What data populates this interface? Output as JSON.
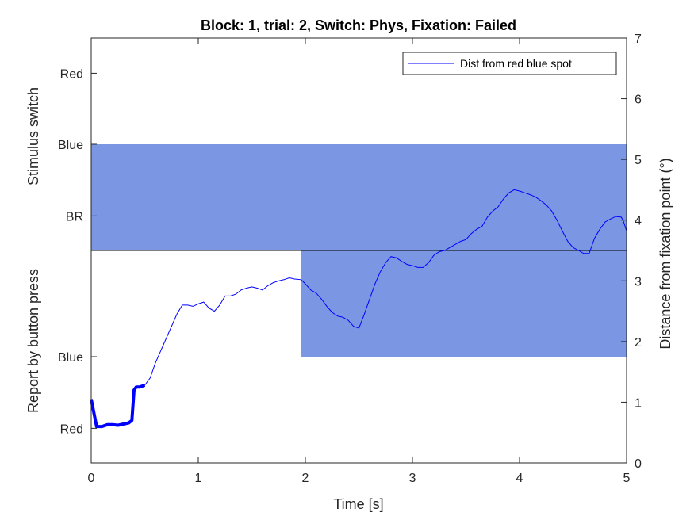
{
  "chart_data": {
    "type": "line",
    "title": "Block: 1, trial: 2, Switch: Phys, Fixation: Failed",
    "xlabel": "Time [s]",
    "ylabel_right": "Distance from fixation point (°)",
    "ylabel_left_top": "Stimulus switch",
    "ylabel_left_bottom": "Report by button press",
    "xlim": [
      0,
      5
    ],
    "ylim_right": [
      0,
      7
    ],
    "x_ticks": [
      "0",
      "1",
      "2",
      "3",
      "4",
      "5"
    ],
    "right_ticks": [
      "0",
      "1",
      "2",
      "3",
      "4",
      "5",
      "6",
      "7"
    ],
    "left_stimulus_ticks": [
      "BR",
      "Blue",
      "Red"
    ],
    "left_report_ticks": [
      "Red",
      "Blue"
    ],
    "divider_y": 3.5,
    "stimulus_bands": [
      {
        "x_start": 0,
        "x_end": 5,
        "state": "Blue",
        "y_top": 5.25,
        "y_bottom": 3.5
      }
    ],
    "report_bands": [
      {
        "x_start": 1.96,
        "x_end": 5,
        "state": "Blue",
        "y_top": 3.5,
        "y_bottom": 1.75
      }
    ],
    "band_color": "#7B97E3",
    "line_color": "#0000FF",
    "legend": {
      "entries": [
        "Dist from red blue spot"
      ],
      "location": "top-right"
    },
    "series": [
      {
        "name": "Dist from red blue spot",
        "x": [
          0.0,
          0.05,
          0.1,
          0.15,
          0.2,
          0.25,
          0.3,
          0.35,
          0.38,
          0.4,
          0.42,
          0.45,
          0.5,
          0.55,
          0.6,
          0.65,
          0.7,
          0.75,
          0.8,
          0.85,
          0.9,
          0.95,
          1.0,
          1.05,
          1.1,
          1.15,
          1.2,
          1.25,
          1.3,
          1.35,
          1.4,
          1.45,
          1.5,
          1.55,
          1.6,
          1.65,
          1.7,
          1.75,
          1.8,
          1.85,
          1.9,
          1.96,
          2.0,
          2.05,
          2.1,
          2.15,
          2.2,
          2.25,
          2.3,
          2.35,
          2.4,
          2.45,
          2.5,
          2.55,
          2.6,
          2.65,
          2.7,
          2.75,
          2.8,
          2.85,
          2.9,
          2.95,
          3.0,
          3.05,
          3.1,
          3.15,
          3.2,
          3.25,
          3.3,
          3.35,
          3.4,
          3.45,
          3.5,
          3.55,
          3.6,
          3.65,
          3.7,
          3.75,
          3.8,
          3.85,
          3.9,
          3.95,
          4.0,
          4.05,
          4.1,
          4.15,
          4.2,
          4.25,
          4.3,
          4.35,
          4.4,
          4.45,
          4.5,
          4.55,
          4.6,
          4.65,
          4.7,
          4.75,
          4.8,
          4.85,
          4.9,
          4.95,
          4.97,
          5.0
        ],
        "y": [
          1.05,
          0.6,
          0.6,
          0.63,
          0.63,
          0.62,
          0.64,
          0.66,
          0.7,
          1.2,
          1.25,
          1.25,
          1.28,
          1.4,
          1.65,
          1.85,
          2.05,
          2.25,
          2.45,
          2.6,
          2.6,
          2.58,
          2.62,
          2.65,
          2.55,
          2.5,
          2.6,
          2.75,
          2.75,
          2.78,
          2.85,
          2.88,
          2.9,
          2.88,
          2.85,
          2.92,
          2.97,
          3.0,
          3.02,
          3.05,
          3.03,
          3.02,
          2.95,
          2.85,
          2.8,
          2.7,
          2.58,
          2.48,
          2.42,
          2.4,
          2.35,
          2.25,
          2.22,
          2.45,
          2.7,
          2.95,
          3.15,
          3.3,
          3.4,
          3.38,
          3.32,
          3.27,
          3.25,
          3.22,
          3.22,
          3.3,
          3.42,
          3.48,
          3.5,
          3.55,
          3.6,
          3.65,
          3.68,
          3.78,
          3.85,
          3.9,
          4.05,
          4.15,
          4.22,
          4.35,
          4.45,
          4.5,
          4.48,
          4.45,
          4.42,
          4.38,
          4.32,
          4.25,
          4.15,
          4.0,
          3.82,
          3.65,
          3.55,
          3.5,
          3.45,
          3.45,
          3.7,
          3.85,
          3.97,
          4.02,
          4.06,
          4.05,
          3.98,
          3.82
        ]
      }
    ]
  }
}
